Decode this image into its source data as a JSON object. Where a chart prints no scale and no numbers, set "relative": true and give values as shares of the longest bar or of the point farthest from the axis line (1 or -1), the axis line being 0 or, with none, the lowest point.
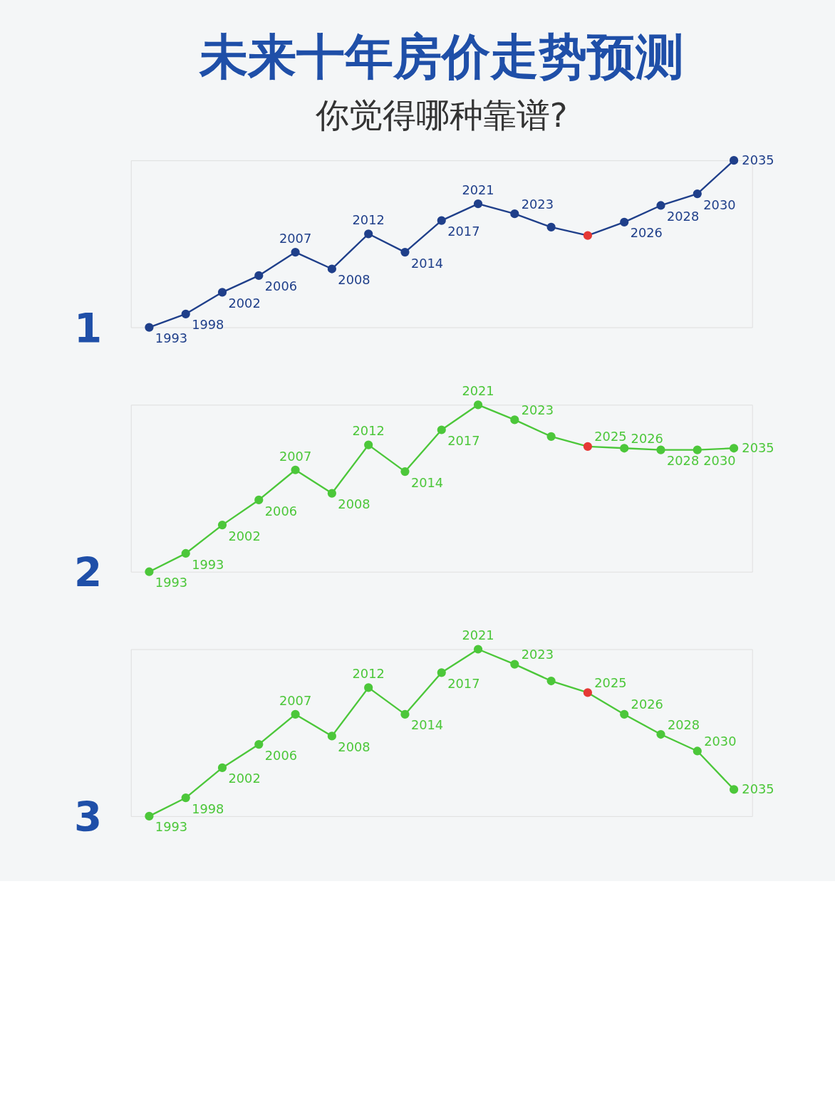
{
  "chart_data": [
    {
      "type": "line",
      "title": "未来十年房价走势预测",
      "subtitle": "你觉得哪种靠谱?",
      "relative": true,
      "marker": "circle",
      "line_style": "solid",
      "tick_labels": false,
      "categories": [
        null,
        null,
        null,
        null,
        null,
        null,
        null,
        null,
        null,
        null,
        null,
        null,
        null,
        null,
        null,
        null,
        null
      ],
      "series": [
        {
          "color": "#1f3f8a",
          "colors": [
            "#1f3f8a",
            "#1f3f8a",
            "#1f3f8a",
            "#1f3f8a",
            "#1f3f8a",
            "#1f3f8a",
            "#1f3f8a",
            "#1f3f8a",
            "#1f3f8a",
            "#1f3f8a",
            "#1f3f8a",
            "#1f3f8a",
            "#e53935",
            "#1f3f8a",
            "#1f3f8a",
            "#1f3f8a",
            "#1f3f8a"
          ],
          "values": [
            0,
            0.08,
            0.21,
            0.31,
            0.45,
            0.35,
            0.56,
            0.45,
            0.64,
            0.74,
            0.68,
            0.6,
            0.55,
            0.63,
            0.73,
            0.8,
            1
          ]
        }
      ],
      "annotations": [
        "1",
        "1993",
        "1998",
        "2002",
        "2006",
        "2007",
        "2008",
        "2012",
        "2014",
        "2017",
        "2021",
        "2023",
        null,
        null,
        "2026",
        "2028",
        "2030",
        "2035"
      ]
    },
    {
      "type": "line",
      "relative": true,
      "marker": "circle",
      "line_style": "solid",
      "tick_labels": false,
      "categories": [
        null,
        null,
        null,
        null,
        null,
        null,
        null,
        null,
        null,
        null,
        null,
        null,
        null,
        null,
        null,
        null,
        null
      ],
      "series": [
        {
          "color": "#4cc73a",
          "colors": [
            "#4cc73a",
            "#4cc73a",
            "#4cc73a",
            "#4cc73a",
            "#4cc73a",
            "#4cc73a",
            "#4cc73a",
            "#4cc73a",
            "#4cc73a",
            "#4cc73a",
            "#4cc73a",
            "#4cc73a",
            "#e53935",
            "#4cc73a",
            "#4cc73a",
            "#4cc73a",
            "#4cc73a"
          ],
          "values": [
            0,
            0.11,
            0.28,
            0.43,
            0.61,
            0.47,
            0.76,
            0.6,
            0.85,
            1,
            0.91,
            0.81,
            0.75,
            0.74,
            0.73,
            0.73,
            0.74
          ]
        }
      ],
      "annotations": [
        "2",
        "1993",
        "1993",
        "2002",
        "2006",
        "2007",
        "2008",
        "2012",
        "2014",
        "2017",
        "2021",
        "2023",
        null,
        "2025",
        "2026",
        "2028",
        "2030",
        "2035"
      ]
    },
    {
      "type": "line",
      "relative": true,
      "marker": "circle",
      "line_style": "solid",
      "tick_labels": false,
      "categories": [
        null,
        null,
        null,
        null,
        null,
        null,
        null,
        null,
        null,
        null,
        null,
        null,
        null,
        null,
        null,
        null,
        null
      ],
      "series": [
        {
          "color": "#4cc73a",
          "colors": [
            "#4cc73a",
            "#4cc73a",
            "#4cc73a",
            "#4cc73a",
            "#4cc73a",
            "#4cc73a",
            "#4cc73a",
            "#4cc73a",
            "#4cc73a",
            "#4cc73a",
            "#4cc73a",
            "#4cc73a",
            "#e53935",
            "#4cc73a",
            "#4cc73a",
            "#4cc73a",
            "#4cc73a"
          ],
          "values": [
            0,
            0.11,
            0.29,
            0.43,
            0.61,
            0.48,
            0.77,
            0.61,
            0.86,
            1,
            0.91,
            0.81,
            0.74,
            0.61,
            0.49,
            0.39,
            0.16
          ]
        }
      ],
      "annotations": [
        "3",
        "1993",
        "1998",
        "2002",
        "2006",
        "2007",
        "2008",
        "2012",
        "2014",
        "2017",
        "2021",
        "2023",
        null,
        "2025",
        "2026",
        "2028",
        "2030",
        "2035"
      ]
    }
  ]
}
